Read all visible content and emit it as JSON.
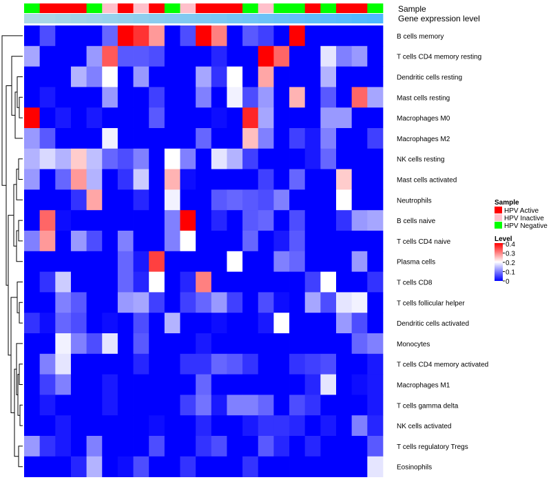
{
  "chart_data": {
    "type": "heatmap",
    "title": "",
    "annotation_tracks": [
      "Sample",
      "Gene expression level"
    ],
    "rows": [
      "B cells memory",
      "T cells CD4 memory resting",
      "Dendritic cells resting",
      "Mast cells resting",
      "Macrophages M0",
      "Macrophages M2",
      "NK cells resting",
      "Mast cells activated",
      "Neutrophils",
      "B cells naive",
      "T cells CD4 naive",
      "Plasma cells",
      "T cells CD8",
      "T cells follicular helper",
      "Dendritic cells activated",
      "Monocytes",
      "T cells CD4 memory activated",
      "Macrophages M1",
      "T cells gamma delta",
      "NK cells activated",
      "T cells regulatory  Tregs",
      "Eosinophils"
    ],
    "column_samples": [
      "Negative",
      "Active",
      "Active",
      "Active",
      "Negative",
      "Inactive",
      "Active",
      "Inactive",
      "Active",
      "Negative",
      "Inactive",
      "Active",
      "Active",
      "Active",
      "Negative",
      "Inactive",
      "Negative",
      "Negative",
      "Active",
      "Negative",
      "Active",
      "Active",
      "Negative"
    ],
    "values": [
      [
        0,
        0.06,
        0,
        0,
        0,
        0.08,
        0.4,
        0.36,
        0.28,
        0,
        0.06,
        0.4,
        0.3,
        0,
        0.07,
        0.05,
        0,
        0.4,
        0,
        0,
        0,
        0,
        0
      ],
      [
        0.13,
        0,
        0,
        0,
        0.12,
        0.33,
        0.07,
        0.07,
        0.06,
        0,
        0,
        0,
        0.03,
        0,
        0,
        0.4,
        0.32,
        0,
        0,
        0.18,
        0.1,
        0.12,
        0
      ],
      [
        0,
        0,
        0,
        0.14,
        0.1,
        0.2,
        0,
        0.12,
        0,
        0,
        0,
        0.13,
        0.04,
        0.2,
        0,
        0.27,
        0,
        0,
        0,
        0.14,
        0,
        0,
        0
      ],
      [
        0,
        0.02,
        0,
        0,
        0,
        0.12,
        0,
        0,
        0.05,
        0,
        0,
        0.1,
        0,
        0.19,
        0.06,
        0.12,
        0,
        0.26,
        0,
        0.07,
        0,
        0.32,
        0.13
      ],
      [
        0.4,
        0,
        0.02,
        0,
        0.02,
        0,
        0,
        0,
        0.07,
        0,
        0,
        0,
        0.01,
        0,
        0.37,
        0.13,
        0,
        0,
        0,
        0.12,
        0.12,
        0,
        0
      ],
      [
        0.12,
        0.07,
        0,
        0,
        0,
        0.19,
        0,
        0,
        0,
        0,
        0,
        0.08,
        0,
        0,
        0.25,
        0.1,
        0,
        0.05,
        0.02,
        0.1,
        0,
        0,
        0.05
      ],
      [
        0.14,
        0.17,
        0.14,
        0.24,
        0.15,
        0.08,
        0.06,
        0.1,
        0,
        0.2,
        0.1,
        0,
        0.18,
        0.14,
        0.05,
        0,
        0,
        0,
        0.02,
        0.08,
        0,
        0,
        0
      ],
      [
        0.12,
        0,
        0.08,
        0.28,
        0.14,
        0,
        0.04,
        0.16,
        0,
        0.26,
        0.01,
        0,
        0,
        0,
        0,
        0.05,
        0,
        0.08,
        0,
        0,
        0.24,
        0,
        0
      ],
      [
        0,
        0,
        0,
        0.04,
        0.27,
        0,
        0,
        0.03,
        0,
        0.19,
        0,
        0,
        0.07,
        0.08,
        0.07,
        0.06,
        0.1,
        0,
        0,
        0,
        0.2,
        0,
        0
      ],
      [
        0,
        0.32,
        0.01,
        0,
        0,
        0,
        0,
        0,
        0,
        0.1,
        0.4,
        0,
        0.03,
        0,
        0.07,
        0.08,
        0,
        0.06,
        0,
        0,
        0.04,
        0.12,
        0.13
      ],
      [
        0.1,
        0.28,
        0,
        0.12,
        0.06,
        0,
        0.1,
        0,
        0,
        0.1,
        0.2,
        0,
        0,
        0,
        0.08,
        0,
        0.02,
        0.07,
        0,
        0,
        0,
        0,
        0
      ],
      [
        0,
        0,
        0,
        0,
        0,
        0,
        0.08,
        0.02,
        0.35,
        0,
        0,
        0,
        0,
        0.2,
        0,
        0,
        0.1,
        0.08,
        0,
        0,
        0,
        0.12,
        0
      ],
      [
        0,
        0.04,
        0.16,
        0,
        0,
        0,
        0.08,
        0.03,
        0.2,
        0,
        0.03,
        0.3,
        0,
        0,
        0,
        0,
        0,
        0,
        0.05,
        0.2,
        0,
        0,
        0.04
      ],
      [
        0,
        0,
        0.1,
        0.07,
        0,
        0,
        0.12,
        0.13,
        0.05,
        0,
        0.05,
        0.08,
        0.12,
        0.05,
        0,
        0.06,
        0.01,
        0,
        0.13,
        0.06,
        0.18,
        0.19,
        0
      ],
      [
        0.04,
        0.01,
        0.08,
        0.06,
        0,
        0.01,
        0,
        0.06,
        0,
        0.14,
        0,
        0,
        0.01,
        0,
        0,
        0.02,
        0.2,
        0,
        0,
        0,
        0.12,
        0.06,
        0
      ],
      [
        0,
        0,
        0.19,
        0.1,
        0.06,
        0.18,
        0,
        0.07,
        0,
        0,
        0,
        0.02,
        0,
        0,
        0,
        0,
        0,
        0,
        0,
        0,
        0,
        0.08,
        0.1
      ],
      [
        0,
        0.1,
        0.18,
        0,
        0,
        0,
        0,
        0.03,
        0,
        0,
        0.04,
        0.04,
        0.08,
        0.07,
        0.04,
        0,
        0,
        0.04,
        0.05,
        0.06,
        0,
        0,
        0.02
      ],
      [
        0,
        0.05,
        0.1,
        0,
        0,
        0.02,
        0,
        0,
        0,
        0,
        0,
        0.08,
        0,
        0,
        0,
        0,
        0,
        0,
        0.03,
        0.18,
        0,
        0.01,
        0.02
      ],
      [
        0,
        0.02,
        0,
        0,
        0,
        0.02,
        0,
        0,
        0,
        0,
        0.05,
        0.09,
        0.02,
        0.1,
        0.1,
        0.08,
        0,
        0.06,
        0.04,
        0,
        0,
        0,
        0.02
      ],
      [
        0,
        0,
        0.02,
        0,
        0,
        0,
        0,
        0,
        0.01,
        0,
        0,
        0.03,
        0,
        0,
        0.02,
        0.04,
        0.04,
        0.03,
        0,
        0.02,
        0,
        0.1,
        0.03
      ],
      [
        0.12,
        0.04,
        0.02,
        0,
        0.1,
        0,
        0,
        0,
        0.06,
        0,
        0,
        0.04,
        0.06,
        0,
        0,
        0.07,
        0.03,
        0,
        0.03,
        0,
        0,
        0,
        0.07
      ],
      [
        0,
        0,
        0,
        0.03,
        0.14,
        0,
        0.01,
        0.06,
        0,
        0,
        0.04,
        0,
        0,
        0,
        0.04,
        0,
        0,
        0,
        0,
        0,
        0,
        0,
        0.18
      ]
    ],
    "legend": {
      "sample_title": "Sample",
      "sample_entries": [
        {
          "label": "HPV Active",
          "color": "#ff0000"
        },
        {
          "label": "HPV Inactive",
          "color": "#ffc0cb"
        },
        {
          "label": "HPV Negative",
          "color": "#00ff00"
        }
      ],
      "level_title": "Level",
      "level_ticks": [
        "0.4",
        "0.3",
        "0.2",
        "0.1",
        "0"
      ],
      "level_range": [
        0,
        0.4
      ],
      "position": "right"
    },
    "colors": {
      "low": "#0000ff",
      "mid": "#ffffff",
      "high": "#ff0000",
      "expression_track_start": "#add8e6",
      "expression_track_end": "#4db8ff"
    }
  }
}
